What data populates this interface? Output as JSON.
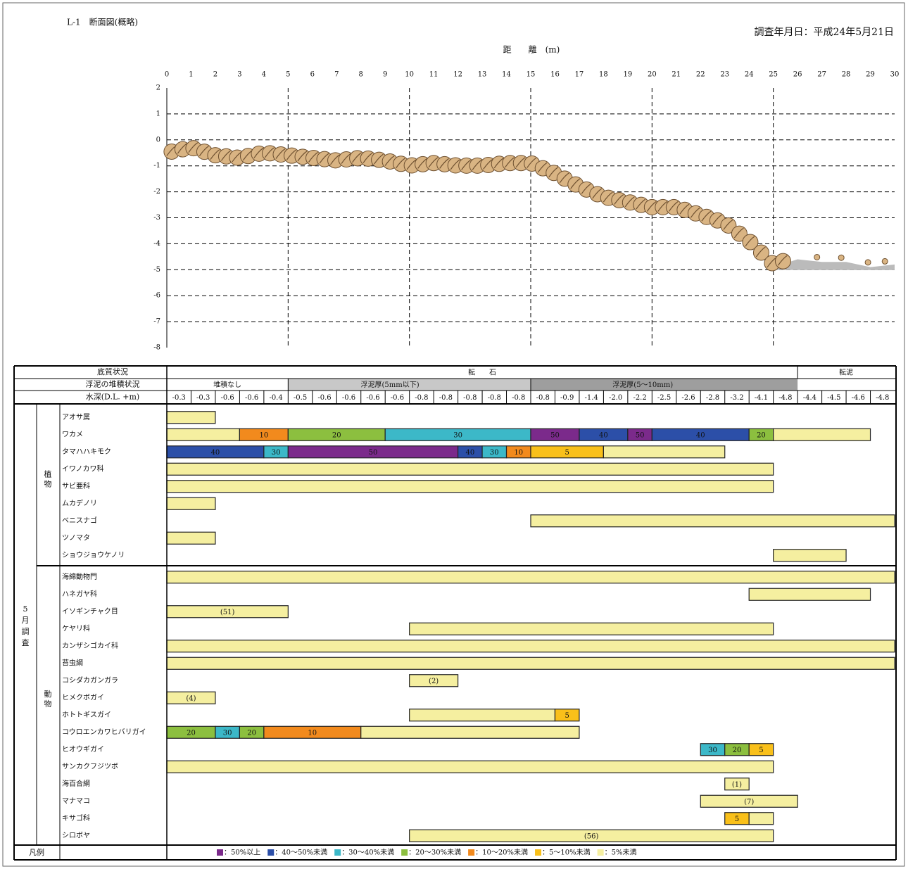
{
  "header": {
    "title": "L-1　断面図(概略)",
    "date": "調査年月日：平成24年5月21日"
  },
  "profile": {
    "type": "line",
    "x_label": "距　　離　(m)",
    "xlim": [
      0,
      30
    ],
    "xticks": [
      0,
      1,
      2,
      3,
      4,
      5,
      6,
      7,
      8,
      9,
      10,
      11,
      12,
      13,
      14,
      15,
      16,
      17,
      18,
      19,
      20,
      21,
      22,
      23,
      24,
      25,
      26,
      27,
      28,
      29,
      30
    ],
    "ylim": [
      -8,
      2
    ],
    "yticks": [
      2,
      1,
      0,
      -1,
      -2,
      -3,
      -4,
      -5,
      -6,
      -7,
      -8
    ],
    "grid": true,
    "x": [
      0,
      1,
      2,
      3,
      4,
      5,
      6,
      7,
      8,
      9,
      10,
      11,
      12,
      13,
      14,
      15,
      16,
      17,
      18,
      19,
      20,
      21,
      22,
      23,
      24,
      25,
      26,
      27,
      28,
      29,
      30
    ],
    "y": [
      -0.6,
      -0.4,
      -0.7,
      -0.8,
      -0.6,
      -0.7,
      -0.8,
      -0.9,
      -0.8,
      -0.9,
      -1.1,
      -1.0,
      -1.1,
      -1.1,
      -1.0,
      -1.0,
      -1.4,
      -1.9,
      -2.3,
      -2.5,
      -2.7,
      -2.7,
      -3.0,
      -3.3,
      -4.0,
      -4.9,
      -4.6,
      -4.7,
      -4.7,
      -4.9,
      -4.8
    ]
  },
  "table": {
    "sediment": {
      "label": "底質状況",
      "cells": [
        {
          "text": "転　　石",
          "from": 0,
          "to": 26
        },
        {
          "text": "転泥",
          "from": 26,
          "to": 30
        }
      ]
    },
    "mud": {
      "label": "浮泥の堆積状況",
      "cells": [
        {
          "text": "堆積なし",
          "from": 0,
          "to": 5,
          "shade": "#ffffff"
        },
        {
          "text": "浮泥厚(5mm以下)",
          "from": 5,
          "to": 15,
          "shade": "#c8c8c8"
        },
        {
          "text": "浮泥厚(5～10mm)",
          "from": 15,
          "to": 26,
          "shade": "#9e9e9e"
        }
      ]
    },
    "depth": {
      "label": "水深(D.L. +m)",
      "values": [
        "-0.3",
        "-0.3",
        "-0.6",
        "-0.6",
        "-0.4",
        "-0.5",
        "-0.6",
        "-0.6",
        "-0.6",
        "-0.6",
        "-0.8",
        "-0.8",
        "-0.8",
        "-0.8",
        "-0.8",
        "-0.8",
        "-0.9",
        "-1.4",
        "-2.0",
        "-2.2",
        "-2.5",
        "-2.6",
        "-2.8",
        "-3.2",
        "-4.1",
        "-4.8",
        "-4.4",
        "-4.5",
        "-4.6",
        "-4.8"
      ]
    },
    "survey_label": "5月調査",
    "groups": [
      {
        "name": "植物",
        "species": [
          {
            "name": "アオサ属",
            "segments": [
              {
                "from": 0,
                "to": 2,
                "color": "#f5efa0"
              }
            ]
          },
          {
            "name": "ワカメ",
            "segments": [
              {
                "from": 0,
                "to": 3,
                "color": "#f5efa0"
              },
              {
                "from": 3,
                "to": 5,
                "color": "#f28a1d",
                "label": "10"
              },
              {
                "from": 5,
                "to": 9,
                "color": "#8cbf3f",
                "label": "20"
              },
              {
                "from": 9,
                "to": 15,
                "color": "#3cb8c8",
                "label": "30"
              },
              {
                "from": 15,
                "to": 17,
                "color": "#7b2a8b",
                "label": "50"
              },
              {
                "from": 17,
                "to": 19,
                "color": "#2c4fa8",
                "label": "40"
              },
              {
                "from": 19,
                "to": 20,
                "color": "#7b2a8b",
                "label": "50"
              },
              {
                "from": 20,
                "to": 24,
                "color": "#2c4fa8",
                "label": "40"
              },
              {
                "from": 24,
                "to": 25,
                "color": "#8cbf3f",
                "label": "20"
              },
              {
                "from": 25,
                "to": 29,
                "color": "#f5efa0"
              }
            ]
          },
          {
            "name": "タマハハキモク",
            "segments": [
              {
                "from": 0,
                "to": 4,
                "color": "#2c4fa8",
                "label": "40"
              },
              {
                "from": 4,
                "to": 5,
                "color": "#3cb8c8",
                "label": "30"
              },
              {
                "from": 5,
                "to": 12,
                "color": "#7b2a8b",
                "label": "50"
              },
              {
                "from": 12,
                "to": 13,
                "color": "#2c4fa8",
                "label": "40"
              },
              {
                "from": 13,
                "to": 14,
                "color": "#3cb8c8",
                "label": "30"
              },
              {
                "from": 14,
                "to": 15,
                "color": "#f28a1d",
                "label": "10"
              },
              {
                "from": 15,
                "to": 18,
                "color": "#f9c01a",
                "label": "5"
              },
              {
                "from": 18,
                "to": 23,
                "color": "#f5efa0"
              }
            ]
          },
          {
            "name": "イワノカワ科",
            "segments": [
              {
                "from": 0,
                "to": 25,
                "color": "#f5efa0"
              }
            ]
          },
          {
            "name": "サビ亜科",
            "segments": [
              {
                "from": 0,
                "to": 25,
                "color": "#f5efa0"
              }
            ]
          },
          {
            "name": "ムカデノリ",
            "segments": [
              {
                "from": 0,
                "to": 2,
                "color": "#f5efa0"
              }
            ]
          },
          {
            "name": "ベニスナゴ",
            "segments": [
              {
                "from": 15,
                "to": 30,
                "color": "#f5efa0"
              }
            ]
          },
          {
            "name": "ツノマタ",
            "segments": [
              {
                "from": 0,
                "to": 2,
                "color": "#f5efa0"
              }
            ]
          },
          {
            "name": "ショウジョウケノリ",
            "segments": [
              {
                "from": 25,
                "to": 28,
                "color": "#f5efa0"
              }
            ]
          }
        ]
      },
      {
        "name": "動物",
        "species": [
          {
            "name": "海綿動物門",
            "segments": [
              {
                "from": 0,
                "to": 30,
                "color": "#f5efa0"
              }
            ]
          },
          {
            "name": "ハネガヤ科",
            "segments": [
              {
                "from": 24,
                "to": 29,
                "color": "#f5efa0"
              }
            ]
          },
          {
            "name": "イソギンチャク目",
            "segments": [
              {
                "from": 0,
                "to": 5,
                "color": "#f5efa0",
                "label": "(51)"
              }
            ]
          },
          {
            "name": "ケヤリ科",
            "segments": [
              {
                "from": 10,
                "to": 25,
                "color": "#f5efa0"
              }
            ]
          },
          {
            "name": "カンザシゴカイ科",
            "segments": [
              {
                "from": 0,
                "to": 30,
                "color": "#f5efa0"
              }
            ]
          },
          {
            "name": "苔虫綱",
            "segments": [
              {
                "from": 0,
                "to": 30,
                "color": "#f5efa0"
              }
            ]
          },
          {
            "name": "コシダカガンガラ",
            "segments": [
              {
                "from": 10,
                "to": 12,
                "color": "#f5efa0",
                "label": "(2)"
              }
            ]
          },
          {
            "name": "ヒメクボガイ",
            "segments": [
              {
                "from": 0,
                "to": 2,
                "color": "#f5efa0",
                "label": "(4)"
              }
            ]
          },
          {
            "name": "ホトトギスガイ",
            "segments": [
              {
                "from": 10,
                "to": 16,
                "color": "#f5efa0"
              },
              {
                "from": 16,
                "to": 17,
                "color": "#f9c01a",
                "label": "5"
              }
            ]
          },
          {
            "name": "コウロエンカワヒバリガイ",
            "segments": [
              {
                "from": 0,
                "to": 2,
                "color": "#8cbf3f",
                "label": "20"
              },
              {
                "from": 2,
                "to": 3,
                "color": "#3cb8c8",
                "label": "30"
              },
              {
                "from": 3,
                "to": 4,
                "color": "#8cbf3f",
                "label": "20"
              },
              {
                "from": 4,
                "to": 8,
                "color": "#f28a1d",
                "label": "10"
              },
              {
                "from": 8,
                "to": 17,
                "color": "#f5efa0"
              }
            ]
          },
          {
            "name": "ヒオウギガイ",
            "segments": [
              {
                "from": 22,
                "to": 23,
                "color": "#3cb8c8",
                "label": "30"
              },
              {
                "from": 23,
                "to": 24,
                "color": "#8cbf3f",
                "label": "20"
              },
              {
                "from": 24,
                "to": 25,
                "color": "#f9c01a",
                "label": "5"
              }
            ]
          },
          {
            "name": "サンカクフジツボ",
            "segments": [
              {
                "from": 0,
                "to": 25,
                "color": "#f5efa0"
              }
            ]
          },
          {
            "name": "海百合綱",
            "segments": [
              {
                "from": 23,
                "to": 24,
                "color": "#f5efa0",
                "label": "(1)"
              }
            ]
          },
          {
            "name": "マナマコ",
            "segments": [
              {
                "from": 22,
                "to": 26,
                "color": "#f5efa0",
                "label": "(7)"
              }
            ]
          },
          {
            "name": "キサゴ科",
            "segments": [
              {
                "from": 23,
                "to": 24,
                "color": "#f9c01a",
                "label": "5"
              },
              {
                "from": 24,
                "to": 25,
                "color": "#f5efa0"
              }
            ]
          },
          {
            "name": "シロボヤ",
            "segments": [
              {
                "from": 10,
                "to": 25,
                "color": "#f5efa0",
                "label": "(56)"
              }
            ]
          }
        ]
      }
    ]
  },
  "legend": {
    "label": "凡例",
    "items": [
      {
        "color": "#7b2a8b",
        "text": "：50%以上"
      },
      {
        "color": "#2c4fa8",
        "text": "：40～50%未満"
      },
      {
        "color": "#3cb8c8",
        "text": "：30～40%未満"
      },
      {
        "color": "#8cbf3f",
        "text": "：20～30%未満"
      },
      {
        "color": "#f28a1d",
        "text": "：10～20%未満"
      },
      {
        "color": "#f9c01a",
        "text": "：5～10%未満"
      },
      {
        "color": "#f5efa0",
        "text": "：5%未満"
      }
    ]
  }
}
